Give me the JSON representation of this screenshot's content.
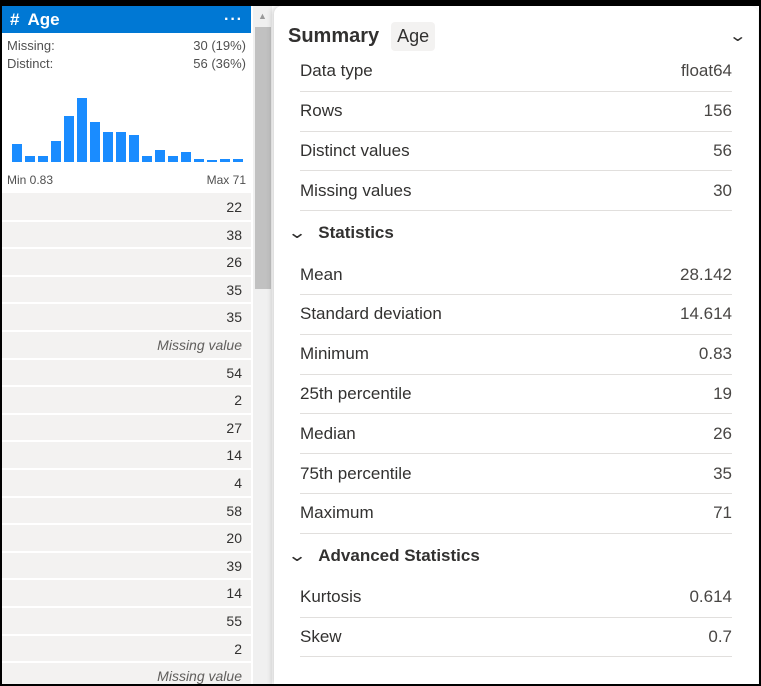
{
  "column": {
    "type_icon": "#",
    "name": "Age",
    "more": "···",
    "missing_label": "Missing:",
    "missing_value": "30 (19%)",
    "distinct_label": "Distinct:",
    "distinct_value": "56 (36%)",
    "min_label": "Min 0.83",
    "max_label": "Max 71",
    "histogram_relative_counts": [
      18,
      6,
      6,
      21,
      46,
      64,
      40,
      30,
      30,
      27,
      6,
      12,
      6,
      10,
      3,
      2,
      3,
      3
    ],
    "bar_color": "#1a8cff",
    "values": [
      "22",
      "38",
      "26",
      "35",
      "35",
      "Missing value",
      "54",
      "2",
      "27",
      "14",
      "4",
      "58",
      "20",
      "39",
      "14",
      "55",
      "2",
      "Missing value"
    ]
  },
  "summary": {
    "title": "Summary",
    "chip": "Age",
    "basic": [
      {
        "k": "Data type",
        "v": "float64"
      },
      {
        "k": "Rows",
        "v": "156"
      },
      {
        "k": "Distinct values",
        "v": "56"
      },
      {
        "k": "Missing values",
        "v": "30"
      }
    ],
    "statistics_label": "Statistics",
    "statistics": [
      {
        "k": "Mean",
        "v": "28.142"
      },
      {
        "k": "Standard deviation",
        "v": "14.614"
      },
      {
        "k": "Minimum",
        "v": "0.83"
      },
      {
        "k": "25th percentile",
        "v": "19"
      },
      {
        "k": "Median",
        "v": "26"
      },
      {
        "k": "75th percentile",
        "v": "35"
      },
      {
        "k": "Maximum",
        "v": "71"
      }
    ],
    "advanced_label": "Advanced Statistics",
    "advanced": [
      {
        "k": "Kurtosis",
        "v": "0.614"
      },
      {
        "k": "Skew",
        "v": "0.7"
      }
    ]
  }
}
